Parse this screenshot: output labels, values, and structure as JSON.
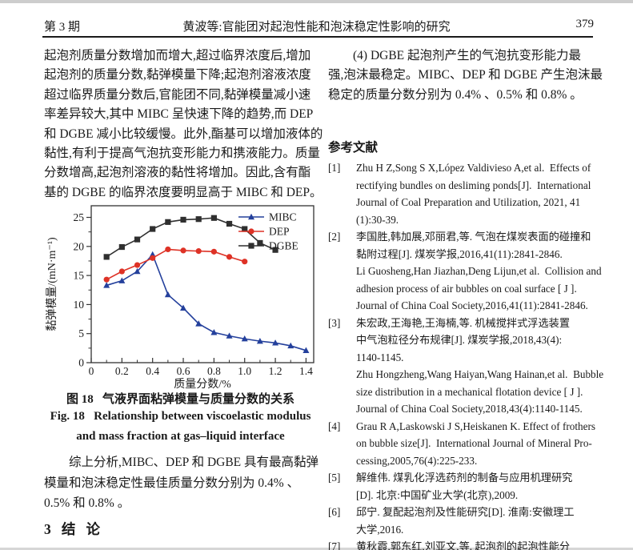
{
  "header": {
    "issue": "第 3 期",
    "title": "黄波等:官能团对起泡性能和泡沫稳定性影响的研究",
    "page_number": "379"
  },
  "left_column": {
    "paragraph1_lines": [
      "起泡剂质量分数增加而增大,超过临界浓度后,增加",
      "起泡剂的质量分数,黏弹模量下降;起泡剂溶液浓度",
      "超过临界质量分数后,官能团不同,黏弹模量减小速",
      "率差异较大,其中 MIBC 呈快速下降的趋势,而 DEP",
      "和 DGBE 减小比较缓慢。此外,酯基可以增加液体的",
      "黏性,有利于提高气泡抗变形能力和携液能力。质量",
      "分数增高,起泡剂溶液的黏性将增加。因此,含有酯",
      "基的 DGBE 的临界浓度要明显高于 MIBC 和 DEP。"
    ],
    "figure_caption_zh": "图 18   气液界面粘弹模量与质量分数的关系",
    "figure_caption_en_line1": "Fig. 18   Relationship between viscoelastic modulus",
    "figure_caption_en_line2": "and mass fraction at gas–liquid interface",
    "paragraph2_lines": [
      "综上分析,MIBC、DEP 和 DGBE 具有最高黏弹",
      "模量和泡沫稳定性最佳质量分数分别为 0.4% 、",
      "0.5% 和 0.8% 。"
    ],
    "section_heading": "3   结   论"
  },
  "right_column": {
    "paragraph_lines": [
      "(4) DGBE 起泡剂产生的气泡抗变形能力最",
      "强,泡沫最稳定。MIBC、DEP 和 DGBE 产生泡沫最",
      "稳定的质量分数分别为 0.4% 、0.5% 和 0.8% 。"
    ],
    "references_heading": "参考文献",
    "references": [
      {
        "num": "[1]",
        "lines": [
          "Zhu H Z,Song S X,López Valdivieso A,et al.  Effects of",
          "rectifying bundles on desliming ponds[J].  International",
          "Journal of Coal Preparation and Utilization, 2021, 41",
          "(1):30-39."
        ]
      },
      {
        "num": "[2]",
        "lines": [
          "李国胜,韩加展,邓丽君,等. 气泡在煤炭表面的碰撞和",
          "黏附过程[J]. 煤炭学报,2016,41(11):2841-2846.",
          "Li Guosheng,Han Jiazhan,Deng Lijun,et al.  Collision and",
          "adhesion process of air bubbles on coal surface [ J ].",
          "Journal of China Coal Society,2016,41(11):2841-2846."
        ]
      },
      {
        "num": "[3]",
        "lines": [
          "朱宏政,王海艳,王海楠,等. 机械搅拌式浮选装置",
          "中气泡粒径分布规律[J]. 煤炭学报,2018,43(4):",
          "1140-1145.",
          "Zhu Hongzheng,Wang Haiyan,Wang Hainan,et al.  Bubble",
          "size distribution in a mechanical flotation device [ J ].",
          "Journal of China Coal Society,2018,43(4):1140-1145."
        ]
      },
      {
        "num": "[4]",
        "lines": [
          "Grau R A,Laskowski J S,Heiskanen K. Effect of frothers",
          "on bubble size[J].  International Journal of Mineral Pro-",
          "cessing,2005,76(4):225-233."
        ]
      },
      {
        "num": "[5]",
        "lines": [
          "解维伟. 煤乳化浮选药剂的制备与应用机理研究",
          "[D]. 北京:中国矿业大学(北京),2009."
        ]
      },
      {
        "num": "[6]",
        "lines": [
          "邱宁. 复配起泡剂及性能研究[D]. 淮南:安徽理工",
          "大学,2016."
        ]
      },
      {
        "num": "[7]",
        "lines": [
          "黄秋霞,郭东红,刘亚文,等. 起泡剂的起泡性能分"
        ]
      }
    ]
  },
  "chart_data": {
    "type": "line",
    "title": "",
    "xlabel": "质量分数/%",
    "ylabel": "黏弹模量/(mN·m⁻¹)",
    "xlim": [
      0,
      1.45
    ],
    "ylim": [
      0,
      27
    ],
    "xticks": [
      0,
      0.2,
      0.4,
      0.6,
      0.8,
      1.0,
      1.2,
      1.4
    ],
    "xtick_labels": [
      "0",
      "0.2",
      "0.4",
      "0.6",
      "0.8",
      "1.0",
      "1.2",
      "1.4"
    ],
    "x_minor_step": 0.1,
    "yticks": [
      0,
      5,
      10,
      15,
      20,
      25
    ],
    "ytick_labels": [
      "0",
      "5",
      "10",
      "15",
      "20",
      "25"
    ],
    "y_minor_step": 2.5,
    "grid": false,
    "legend_position": "top-right",
    "series": [
      {
        "name": "MIBC",
        "color": "#24409c",
        "marker": "triangle",
        "x": [
          0.1,
          0.2,
          0.3,
          0.4,
          0.5,
          0.6,
          0.7,
          0.8,
          0.9,
          1.0,
          1.1,
          1.2,
          1.3,
          1.4
        ],
        "y": [
          13.3,
          14.1,
          15.7,
          18.6,
          11.7,
          9.4,
          6.7,
          5.2,
          4.6,
          4.1,
          3.7,
          3.4,
          2.9,
          2.1
        ]
      },
      {
        "name": "DEP",
        "color": "#de3226",
        "marker": "circle",
        "x": [
          0.1,
          0.2,
          0.3,
          0.4,
          0.5,
          0.6,
          0.7,
          0.8,
          0.9,
          1.0
        ],
        "y": [
          14.3,
          15.7,
          16.8,
          18.0,
          19.5,
          19.3,
          19.2,
          19.1,
          18.2,
          17.4
        ]
      },
      {
        "name": "DGBE",
        "color": "#2f2f2f",
        "marker": "square",
        "x": [
          0.1,
          0.2,
          0.3,
          0.4,
          0.5,
          0.6,
          0.7,
          0.8,
          0.9,
          1.0,
          1.1,
          1.2
        ],
        "y": [
          18.2,
          19.9,
          21.2,
          23.0,
          24.2,
          24.6,
          24.7,
          24.9,
          23.9,
          23.0,
          20.6,
          19.4
        ]
      }
    ]
  }
}
